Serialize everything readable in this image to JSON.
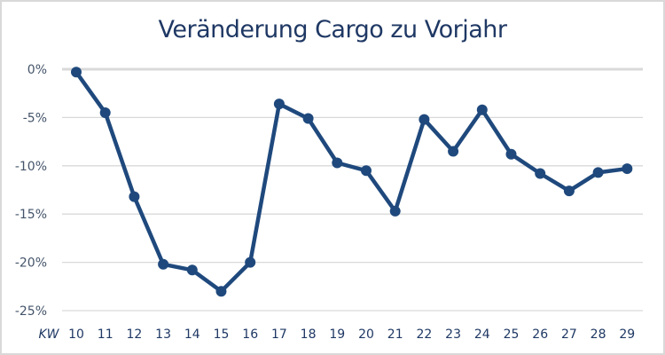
{
  "chart_data": {
    "type": "line",
    "title": "Veränderung Cargo zu Vorjahr",
    "xlabel": "KW",
    "ylabel": "",
    "categories": [
      "10",
      "11",
      "12",
      "13",
      "14",
      "15",
      "16",
      "17",
      "18",
      "19",
      "20",
      "21",
      "22",
      "23",
      "24",
      "25",
      "26",
      "27",
      "28",
      "29"
    ],
    "series": [
      {
        "name": "Veränderung Cargo zu Vorjahr",
        "values": [
          -0.3,
          -4.5,
          -13.2,
          -20.2,
          -20.8,
          -23.0,
          -20.0,
          -3.6,
          -5.1,
          -9.7,
          -10.5,
          -14.7,
          -5.2,
          -8.5,
          -4.2,
          -8.8,
          -10.8,
          -12.6,
          -10.7,
          -10.3
        ],
        "color": "#1f497d"
      }
    ],
    "yticks": [
      0,
      -5,
      -10,
      -15,
      -20,
      -25
    ],
    "ytick_labels": [
      "0%",
      "-5%",
      "-10%",
      "-15%",
      "-20%",
      "-25%"
    ],
    "ylim": [
      -25,
      0
    ],
    "grid": true,
    "legend": "none"
  },
  "colors": {
    "line": "#1f497d",
    "title": "#1f3864",
    "grid": "#d9d9d9",
    "axis_labels": "#44546a"
  }
}
